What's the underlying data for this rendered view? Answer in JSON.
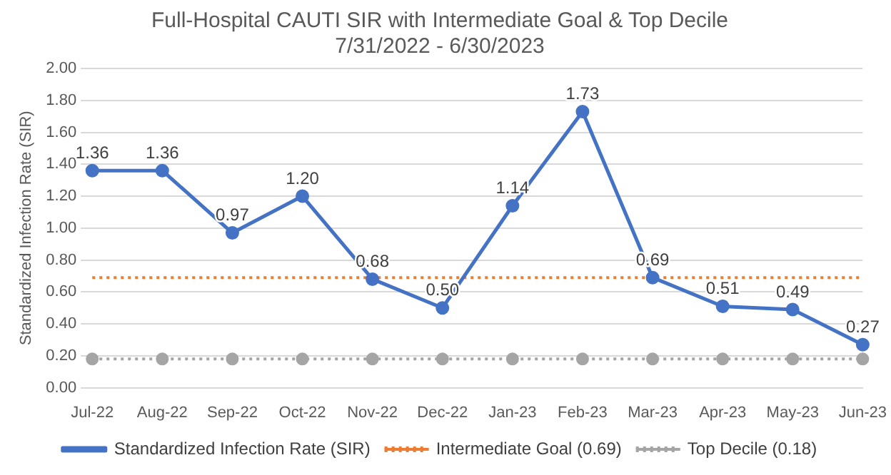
{
  "chart_data": {
    "type": "line",
    "title": "Full-Hospital CAUTI SIR with Intermediate Goal & Top Decile",
    "subtitle": "7/31/2022 - 6/30/2023",
    "ylabel": "Standardized Infection Rate (SIR)",
    "categories": [
      "Jul-22",
      "Aug-22",
      "Sep-22",
      "Oct-22",
      "Nov-22",
      "Dec-22",
      "Jan-23",
      "Feb-23",
      "Mar-23",
      "Apr-23",
      "May-23",
      "Jun-23"
    ],
    "series": [
      {
        "name": "Standardized Infection Rate (SIR)",
        "color": "#4472c4",
        "marker": "circle",
        "line_style": "solid",
        "values": [
          1.36,
          1.36,
          0.97,
          1.2,
          0.68,
          0.5,
          1.14,
          1.73,
          0.69,
          0.51,
          0.49,
          0.27
        ],
        "value_labels": [
          "1.36",
          "1.36",
          "0.97",
          "1.20",
          "0.68",
          "0.50",
          "1.14",
          "1.73",
          "0.69",
          "0.51",
          "0.49",
          "0.27"
        ]
      },
      {
        "name": "Intermediate Goal (0.69)",
        "color": "#ed7d31",
        "marker": "none",
        "line_style": "dotted",
        "values": [
          0.69,
          0.69,
          0.69,
          0.69,
          0.69,
          0.69,
          0.69,
          0.69,
          0.69,
          0.69,
          0.69,
          0.69
        ]
      },
      {
        "name": "Top Decile (0.18)",
        "color": "#a5a5a5",
        "marker": "circle",
        "line_style": "dotted",
        "values": [
          0.18,
          0.18,
          0.18,
          0.18,
          0.18,
          0.18,
          0.18,
          0.18,
          0.18,
          0.18,
          0.18,
          0.18
        ]
      }
    ],
    "ylim": [
      0,
      2
    ],
    "yticks": [
      {
        "value": 0,
        "label": "0.00"
      },
      {
        "value": 0.2,
        "label": "0.20"
      },
      {
        "value": 0.4,
        "label": "0.40"
      },
      {
        "value": 0.6,
        "label": "0.60"
      },
      {
        "value": 0.8,
        "label": "0.80"
      },
      {
        "value": 1,
        "label": "1.00"
      },
      {
        "value": 1.2,
        "label": "1.20"
      },
      {
        "value": 1.4,
        "label": "1.40"
      },
      {
        "value": 1.6,
        "label": "1.60"
      },
      {
        "value": 1.8,
        "label": "1.80"
      },
      {
        "value": 2,
        "label": "2.00"
      }
    ],
    "grid": "y",
    "legend": "bottom"
  }
}
